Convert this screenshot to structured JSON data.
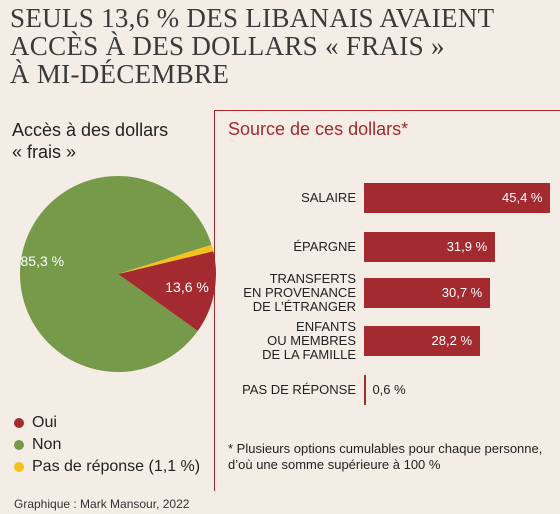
{
  "headline": [
    "SEULS 13,6 % DES LIBANAIS AVAIENT",
    "ACCÈS À DES DOLLARS « FRAIS »",
    "À MI-DÉCEMBRE"
  ],
  "credit": "Graphique : Mark Mansour, 2022",
  "footnote": "* Plusieurs options cumulables pour chaque personne, d’où une somme supérieure à 100 %",
  "colors": {
    "oui": "#a32a2e",
    "non": "#76994a",
    "nr": "#f3c21b",
    "bar": "#a32a2e"
  },
  "chart_data": [
    {
      "type": "pie",
      "title": [
        "Accès à des dollars",
        "« frais »"
      ],
      "slices": [
        {
          "key": "oui",
          "legend": "Oui",
          "value": 13.6,
          "label": "13,6 %"
        },
        {
          "key": "nr",
          "legend": "Pas de réponse (1,1 %)",
          "value": 1.1,
          "label": ""
        },
        {
          "key": "non",
          "legend": "Non",
          "value": 85.3,
          "label": "85,3 %"
        }
      ],
      "legend_order": [
        "oui",
        "non",
        "nr"
      ]
    },
    {
      "type": "bar",
      "title": "Source de ces dollars*",
      "categories": [
        [
          "SALAIRE"
        ],
        [
          "ÉPARGNE"
        ],
        [
          "TRANSFERTS",
          "EN PROVENANCE",
          "DE L’ÉTRANGER"
        ],
        [
          "ENFANTS",
          "OU MEMBRES",
          "DE LA FAMILLE"
        ],
        [
          "PAS DE RÉPONSE"
        ]
      ],
      "values": [
        45.4,
        31.9,
        30.7,
        28.2,
        0.6
      ],
      "value_labels": [
        "45,4 %",
        "31,9 %",
        "30,7 %",
        "28,2 %",
        "0,6 %"
      ],
      "xlim": [
        0,
        45.4
      ]
    }
  ]
}
